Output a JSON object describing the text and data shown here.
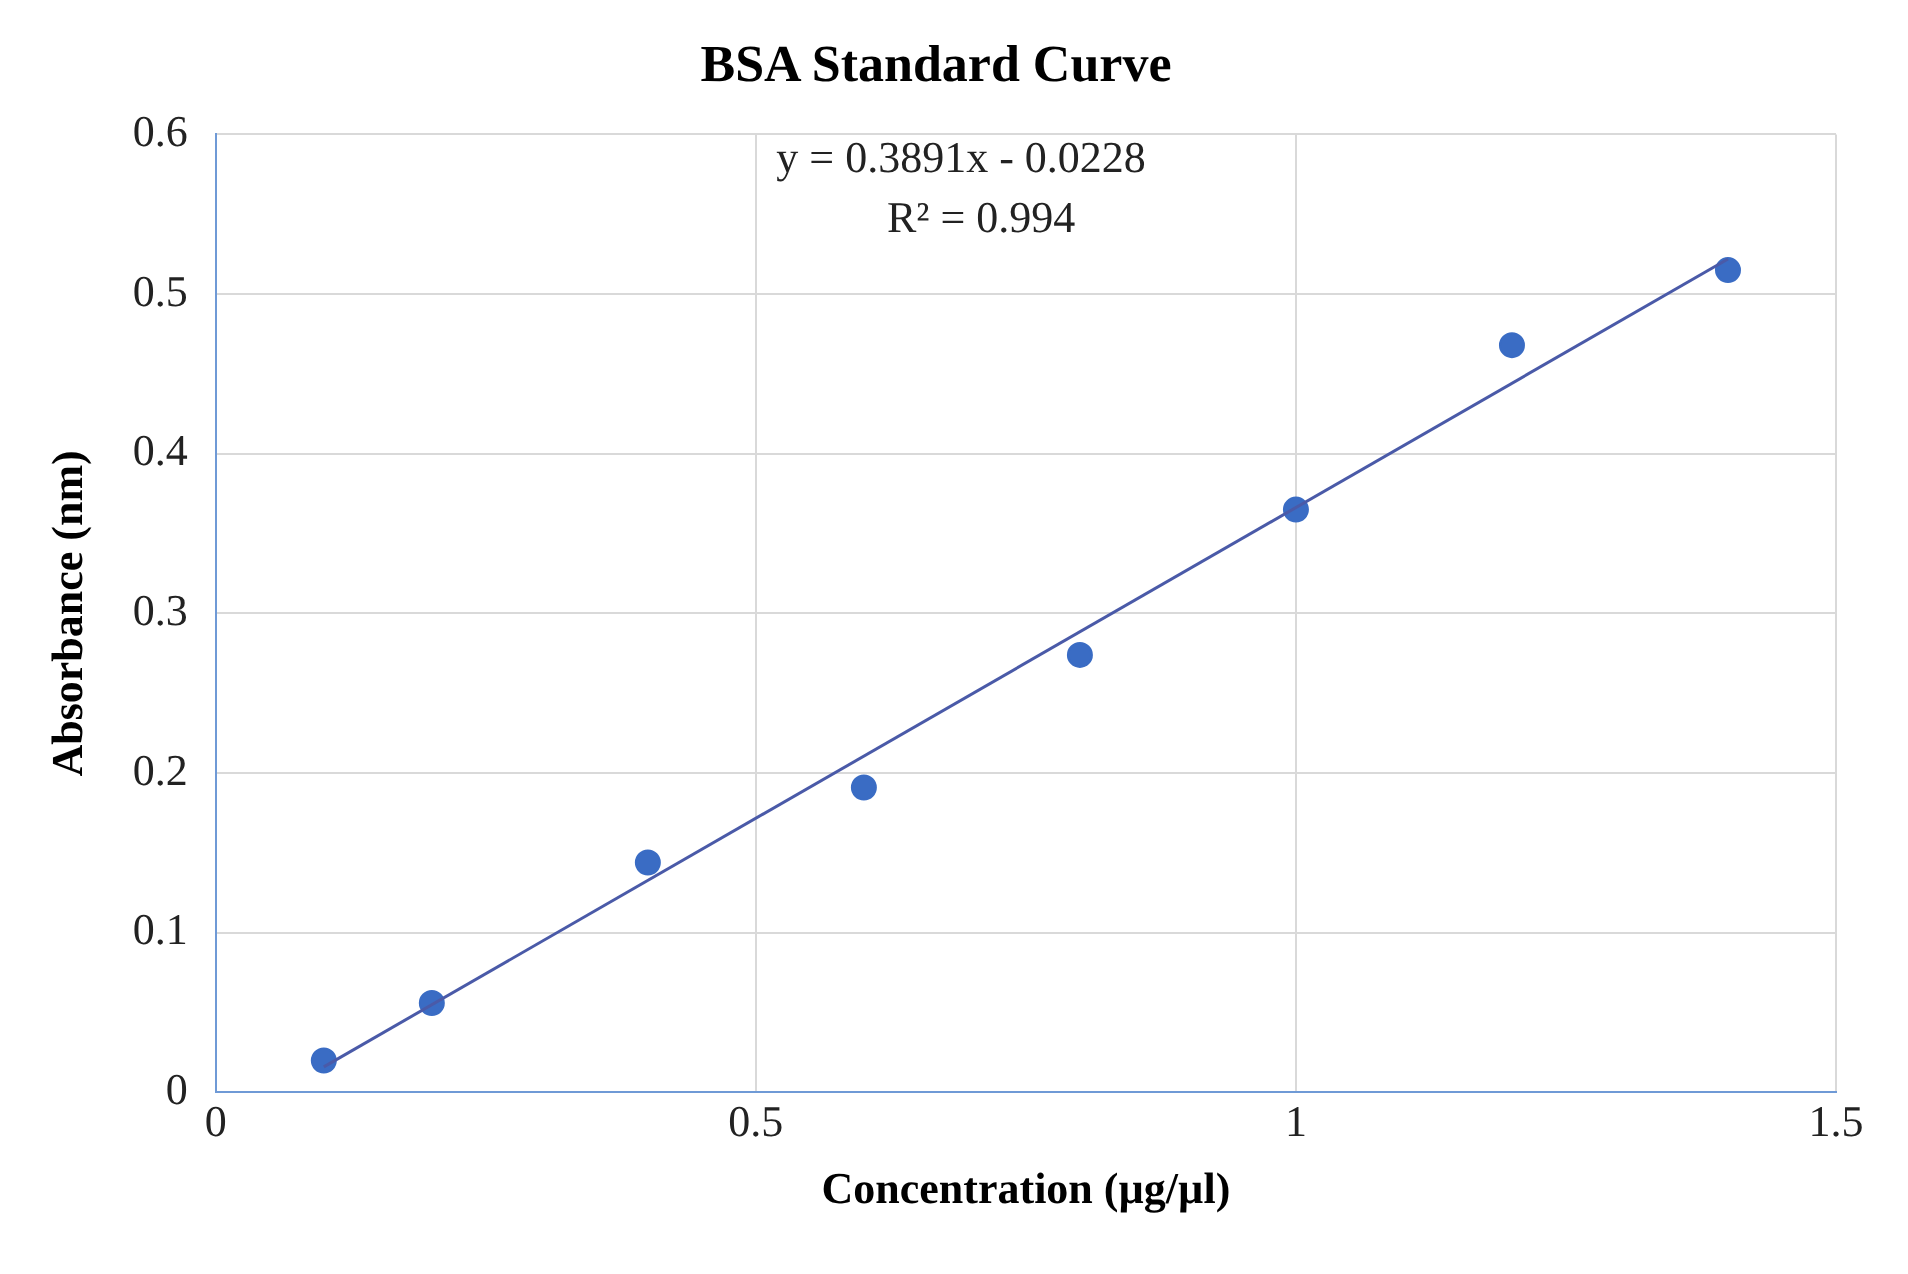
{
  "chart_data": {
    "type": "scatter",
    "title": "BSA Standard Curve",
    "xlabel": "Concentration (µg/µl)",
    "ylabel": "Absorbance (nm)",
    "annotations": [
      "y = 0.3891x - 0.0228",
      "R² = 0.994"
    ],
    "xlim": [
      0,
      1.5
    ],
    "xticks": [
      0,
      0.5,
      1,
      1.5
    ],
    "ylim": [
      0,
      0.6
    ],
    "yticks": [
      0,
      0.1,
      0.2,
      0.3,
      0.4,
      0.5,
      0.6
    ],
    "grid": true,
    "legend": false,
    "marker": "circle",
    "series": [
      {
        "color": "#3a6cc4",
        "x": [
          0.1,
          0.2,
          0.4,
          0.6,
          0.8,
          1.0,
          1.2,
          1.4
        ],
        "values": [
          0.02,
          0.056,
          0.144,
          0.191,
          0.274,
          0.365,
          0.468,
          0.515
        ]
      },
      {
        "type": "line",
        "color": "#4a5aa8",
        "line_style": "solid",
        "marker": "none",
        "x": [
          0.1,
          1.4
        ],
        "values": [
          0.016,
          0.522
        ]
      }
    ]
  }
}
